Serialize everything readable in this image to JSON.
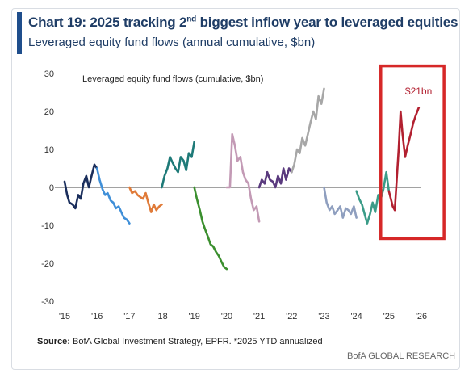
{
  "title": {
    "prefix": "Chart 19: 2025 tracking 2",
    "sup": "nd",
    "suffix": " biggest inflow year to leveraged equities"
  },
  "subtitle": "Leveraged equity fund flows (annual cumulative, $bn)",
  "source_label": "Source:",
  "source_text": " BofA Global Investment Strategy, EPFR. *2025 YTD annualized",
  "credit": "BofA GLOBAL RESEARCH",
  "colors": {
    "title": "#1f3d66",
    "highlight_box": "#d62828",
    "zero_line": "#444444"
  },
  "chart_data": {
    "type": "line",
    "title": "Leveraged equity fund flows (cumulative, $bn)",
    "xlabel": "",
    "ylabel": "",
    "xlim": [
      2015,
      2026.3
    ],
    "ylim": [
      -30,
      30
    ],
    "yticks": [
      30,
      20,
      10,
      0,
      -10,
      -20,
      -30
    ],
    "xticks": [
      "'15",
      "'16",
      "'17",
      "'18",
      "'19",
      "'20",
      "'21",
      "'22",
      "'23",
      "'24",
      "'25",
      "'26"
    ],
    "grid": false,
    "annotation": "$21bn",
    "highlight": {
      "x_from": 2024.75,
      "x_to": 2026.7,
      "y_from": -13.5,
      "y_to": 32
    },
    "series": [
      {
        "year": "2015",
        "color": "#1a2e5c",
        "x": [
          2015.0,
          2015.08,
          2015.15,
          2015.25,
          2015.33,
          2015.42,
          2015.5,
          2015.58,
          2015.67,
          2015.75,
          2015.83,
          2015.92,
          2016.0
        ],
        "y": [
          1.5,
          -2,
          -4,
          -4.5,
          -5.5,
          -2,
          -3,
          1,
          3,
          0,
          3,
          6,
          5
        ]
      },
      {
        "year": "2016",
        "color": "#3f8fd8",
        "x": [
          2016.0,
          2016.08,
          2016.17,
          2016.25,
          2016.33,
          2016.42,
          2016.5,
          2016.58,
          2016.67,
          2016.75,
          2016.83,
          2016.92,
          2017.0
        ],
        "y": [
          5,
          2,
          -0.5,
          -2,
          -1.5,
          -3.5,
          -4,
          -5.5,
          -5,
          -6.5,
          -8,
          -8.5,
          -9.5
        ]
      },
      {
        "year": "2017",
        "color": "#e07b39",
        "x": [
          2017.0,
          2017.08,
          2017.17,
          2017.25,
          2017.33,
          2017.42,
          2017.5,
          2017.58,
          2017.67,
          2017.75,
          2017.83,
          2017.92,
          2018.0
        ],
        "y": [
          0,
          -1.5,
          -1,
          -2,
          -2.5,
          -3,
          -1.5,
          -4,
          -6.5,
          -4.5,
          -6,
          -5,
          -4.5
        ]
      },
      {
        "year": "2018",
        "color": "#1e7a78",
        "x": [
          2018.0,
          2018.08,
          2018.17,
          2018.25,
          2018.33,
          2018.42,
          2018.5,
          2018.58,
          2018.67,
          2018.75,
          2018.83,
          2018.92,
          2019.0
        ],
        "y": [
          0,
          3,
          5,
          8,
          6.5,
          5,
          4,
          8,
          7,
          4.5,
          9,
          8,
          12
        ]
      },
      {
        "year": "2019",
        "color": "#3b8f2e",
        "x": [
          2019.0,
          2019.08,
          2019.17,
          2019.25,
          2019.33,
          2019.42,
          2019.5,
          2019.58,
          2019.67,
          2019.75,
          2019.83,
          2019.92,
          2020.0
        ],
        "y": [
          0,
          -3,
          -6,
          -9,
          -11,
          -13,
          -15,
          -15.5,
          -17,
          -18,
          -19.5,
          -21,
          -21.5
        ]
      },
      {
        "year": "2020",
        "color": "#c39ab5",
        "x": [
          2020.0,
          2020.1,
          2020.17,
          2020.25,
          2020.33,
          2020.42,
          2020.5,
          2020.58,
          2020.67,
          2020.75,
          2020.83,
          2020.92,
          2021.0
        ],
        "y": [
          0,
          0,
          14,
          11,
          7,
          8,
          4,
          2,
          1,
          -3,
          -6,
          -5,
          -9
        ]
      },
      {
        "year": "2021",
        "color": "#5a3a7e",
        "x": [
          2021.0,
          2021.08,
          2021.17,
          2021.25,
          2021.33,
          2021.42,
          2021.5,
          2021.58,
          2021.67,
          2021.75,
          2021.83,
          2021.92,
          2022.0
        ],
        "y": [
          0,
          2,
          1,
          4,
          2,
          1.5,
          0,
          3,
          1,
          5,
          2,
          5,
          4
        ]
      },
      {
        "year": "2022",
        "color": "#a7a7a7",
        "x": [
          2022.0,
          2022.08,
          2022.17,
          2022.25,
          2022.33,
          2022.42,
          2022.5,
          2022.58,
          2022.67,
          2022.75,
          2022.83,
          2022.92,
          2023.0
        ],
        "y": [
          4,
          6,
          10,
          9,
          13,
          11,
          14,
          17,
          20,
          18,
          24,
          22,
          26
        ]
      },
      {
        "year": "2023",
        "color": "#8f9fbf",
        "x": [
          2023.0,
          2023.08,
          2023.17,
          2023.25,
          2023.33,
          2023.42,
          2023.5,
          2023.58,
          2023.67,
          2023.75,
          2023.83,
          2023.92,
          2024.0
        ],
        "y": [
          0,
          -4,
          -6,
          -5,
          -7,
          -6,
          -5,
          -8,
          -5.5,
          -6,
          -7,
          -5,
          -8
        ]
      },
      {
        "year": "2024",
        "color": "#3b9c88",
        "x": [
          2024.0,
          2024.08,
          2024.17,
          2024.25,
          2024.33,
          2024.42,
          2024.5,
          2024.58,
          2024.67,
          2024.75,
          2024.83,
          2024.92,
          2025.0
        ],
        "y": [
          -1,
          -3,
          -4.5,
          -7,
          -9.5,
          -7,
          -4,
          -6.5,
          -2,
          -3,
          -0.5,
          4,
          -1
        ]
      },
      {
        "year": "2025",
        "color": "#b22030",
        "x": [
          2025.0,
          2025.06,
          2025.12,
          2025.18,
          2025.24,
          2025.3,
          2025.36,
          2025.42,
          2025.5,
          2025.58,
          2025.67,
          2025.75,
          2025.83,
          2025.92
        ],
        "y": [
          -1,
          -3,
          -5,
          -6,
          2,
          10,
          20,
          14,
          8,
          11,
          14,
          17,
          19,
          21
        ]
      }
    ]
  }
}
